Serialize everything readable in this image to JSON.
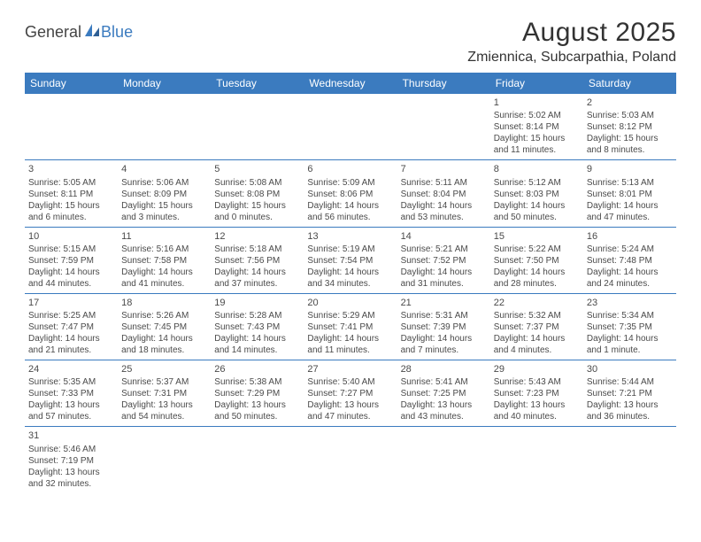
{
  "logo": {
    "text1": "General",
    "text2": "Blue"
  },
  "title": "August 2025",
  "location": "Zmiennica, Subcarpathia, Poland",
  "colors": {
    "header_bg": "#3b7bbf",
    "header_fg": "#ffffff",
    "rule": "#3b7bbf",
    "text": "#4a4a4a"
  },
  "day_headers": [
    "Sunday",
    "Monday",
    "Tuesday",
    "Wednesday",
    "Thursday",
    "Friday",
    "Saturday"
  ],
  "weeks": [
    [
      null,
      null,
      null,
      null,
      null,
      {
        "d": "1",
        "sr": "5:02 AM",
        "ss": "8:14 PM",
        "dl": "15 hours and 11 minutes."
      },
      {
        "d": "2",
        "sr": "5:03 AM",
        "ss": "8:12 PM",
        "dl": "15 hours and 8 minutes."
      }
    ],
    [
      {
        "d": "3",
        "sr": "5:05 AM",
        "ss": "8:11 PM",
        "dl": "15 hours and 6 minutes."
      },
      {
        "d": "4",
        "sr": "5:06 AM",
        "ss": "8:09 PM",
        "dl": "15 hours and 3 minutes."
      },
      {
        "d": "5",
        "sr": "5:08 AM",
        "ss": "8:08 PM",
        "dl": "15 hours and 0 minutes."
      },
      {
        "d": "6",
        "sr": "5:09 AM",
        "ss": "8:06 PM",
        "dl": "14 hours and 56 minutes."
      },
      {
        "d": "7",
        "sr": "5:11 AM",
        "ss": "8:04 PM",
        "dl": "14 hours and 53 minutes."
      },
      {
        "d": "8",
        "sr": "5:12 AM",
        "ss": "8:03 PM",
        "dl": "14 hours and 50 minutes."
      },
      {
        "d": "9",
        "sr": "5:13 AM",
        "ss": "8:01 PM",
        "dl": "14 hours and 47 minutes."
      }
    ],
    [
      {
        "d": "10",
        "sr": "5:15 AM",
        "ss": "7:59 PM",
        "dl": "14 hours and 44 minutes."
      },
      {
        "d": "11",
        "sr": "5:16 AM",
        "ss": "7:58 PM",
        "dl": "14 hours and 41 minutes."
      },
      {
        "d": "12",
        "sr": "5:18 AM",
        "ss": "7:56 PM",
        "dl": "14 hours and 37 minutes."
      },
      {
        "d": "13",
        "sr": "5:19 AM",
        "ss": "7:54 PM",
        "dl": "14 hours and 34 minutes."
      },
      {
        "d": "14",
        "sr": "5:21 AM",
        "ss": "7:52 PM",
        "dl": "14 hours and 31 minutes."
      },
      {
        "d": "15",
        "sr": "5:22 AM",
        "ss": "7:50 PM",
        "dl": "14 hours and 28 minutes."
      },
      {
        "d": "16",
        "sr": "5:24 AM",
        "ss": "7:48 PM",
        "dl": "14 hours and 24 minutes."
      }
    ],
    [
      {
        "d": "17",
        "sr": "5:25 AM",
        "ss": "7:47 PM",
        "dl": "14 hours and 21 minutes."
      },
      {
        "d": "18",
        "sr": "5:26 AM",
        "ss": "7:45 PM",
        "dl": "14 hours and 18 minutes."
      },
      {
        "d": "19",
        "sr": "5:28 AM",
        "ss": "7:43 PM",
        "dl": "14 hours and 14 minutes."
      },
      {
        "d": "20",
        "sr": "5:29 AM",
        "ss": "7:41 PM",
        "dl": "14 hours and 11 minutes."
      },
      {
        "d": "21",
        "sr": "5:31 AM",
        "ss": "7:39 PM",
        "dl": "14 hours and 7 minutes."
      },
      {
        "d": "22",
        "sr": "5:32 AM",
        "ss": "7:37 PM",
        "dl": "14 hours and 4 minutes."
      },
      {
        "d": "23",
        "sr": "5:34 AM",
        "ss": "7:35 PM",
        "dl": "14 hours and 1 minute."
      }
    ],
    [
      {
        "d": "24",
        "sr": "5:35 AM",
        "ss": "7:33 PM",
        "dl": "13 hours and 57 minutes."
      },
      {
        "d": "25",
        "sr": "5:37 AM",
        "ss": "7:31 PM",
        "dl": "13 hours and 54 minutes."
      },
      {
        "d": "26",
        "sr": "5:38 AM",
        "ss": "7:29 PM",
        "dl": "13 hours and 50 minutes."
      },
      {
        "d": "27",
        "sr": "5:40 AM",
        "ss": "7:27 PM",
        "dl": "13 hours and 47 minutes."
      },
      {
        "d": "28",
        "sr": "5:41 AM",
        "ss": "7:25 PM",
        "dl": "13 hours and 43 minutes."
      },
      {
        "d": "29",
        "sr": "5:43 AM",
        "ss": "7:23 PM",
        "dl": "13 hours and 40 minutes."
      },
      {
        "d": "30",
        "sr": "5:44 AM",
        "ss": "7:21 PM",
        "dl": "13 hours and 36 minutes."
      }
    ],
    [
      {
        "d": "31",
        "sr": "5:46 AM",
        "ss": "7:19 PM",
        "dl": "13 hours and 32 minutes."
      },
      null,
      null,
      null,
      null,
      null,
      null
    ]
  ],
  "labels": {
    "sunrise": "Sunrise: ",
    "sunset": "Sunset: ",
    "daylight": "Daylight: "
  }
}
